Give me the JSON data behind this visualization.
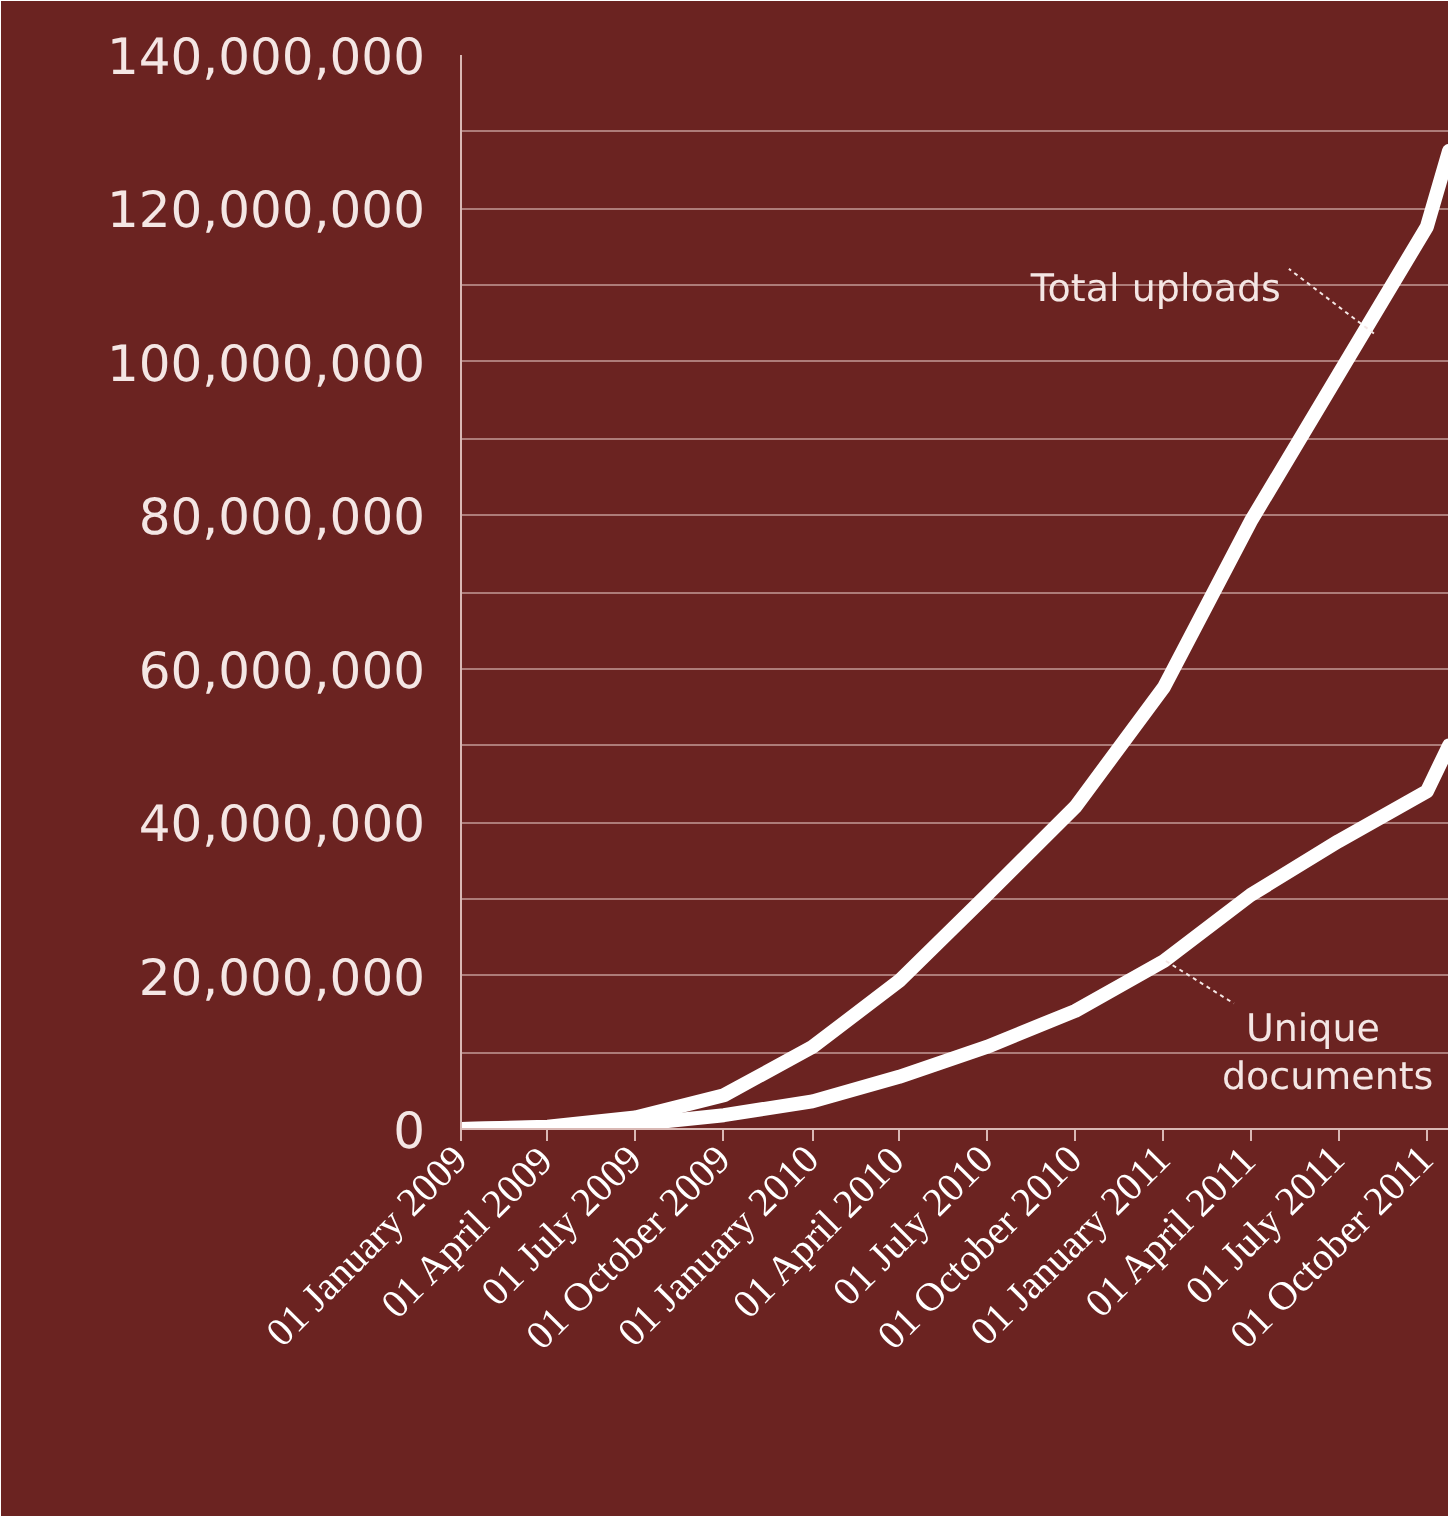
{
  "chart_data": {
    "type": "line",
    "x": [
      "2009-01-01",
      "2009-04-01",
      "2009-07-01",
      "2009-10-01",
      "2010-01-01",
      "2010-04-01",
      "2010-07-01",
      "2010-10-01",
      "2011-01-01",
      "2011-04-01",
      "2011-07-01",
      "2011-10-01",
      "2011-10-24"
    ],
    "series": [
      {
        "color": "#ffffff",
        "values": [
          0,
          300000,
          1500000,
          4400000,
          10700000,
          19300000,
          30500000,
          42000000,
          57600000,
          79200000,
          98300000,
          117600000,
          127500000
        ]
      },
      {
        "color": "#ffffff",
        "values": [
          0,
          200000,
          600000,
          1800000,
          3600000,
          6800000,
          10700000,
          15400000,
          21900000,
          30500000,
          37500000,
          44000000,
          50000000
        ]
      }
    ],
    "xlim": [
      "2009-01-01",
      "2011-10-24"
    ],
    "xticks": [
      {
        "value": "2009-01-01",
        "label": "01 January 2009"
      },
      {
        "value": "2009-04-01",
        "label": "01 April 2009"
      },
      {
        "value": "2009-07-01",
        "label": "01 July 2009"
      },
      {
        "value": "2009-10-01",
        "label": "01 October 2009"
      },
      {
        "value": "2010-01-01",
        "label": "01 January 2010"
      },
      {
        "value": "2010-04-01",
        "label": "01 April 2010"
      },
      {
        "value": "2010-07-01",
        "label": "01 July 2010"
      },
      {
        "value": "2010-10-01",
        "label": "01 October 2010"
      },
      {
        "value": "2011-01-01",
        "label": "01 January 2011"
      },
      {
        "value": "2011-04-01",
        "label": "01 April 2011"
      },
      {
        "value": "2011-07-01",
        "label": "01 July 2011"
      },
      {
        "value": "2011-10-01",
        "label": "01 October 2011"
      }
    ],
    "ylim": [
      0,
      140000000
    ],
    "yticks": [
      {
        "value": 0,
        "label": "0"
      },
      {
        "value": 10000000,
        "label": null
      },
      {
        "value": 20000000,
        "label": "20,000,000"
      },
      {
        "value": 30000000,
        "label": null
      },
      {
        "value": 40000000,
        "label": "40,000,000"
      },
      {
        "value": 50000000,
        "label": null
      },
      {
        "value": 60000000,
        "label": "60,000,000"
      },
      {
        "value": 70000000,
        "label": null
      },
      {
        "value": 80000000,
        "label": "80,000,000"
      },
      {
        "value": 90000000,
        "label": null
      },
      {
        "value": 100000000,
        "label": "100,000,000"
      },
      {
        "value": 110000000,
        "label": null
      },
      {
        "value": 120000000,
        "label": "120,000,000"
      },
      {
        "value": 130000000,
        "label": null
      },
      {
        "value": 140000000,
        "label": "140,000,000"
      }
    ],
    "grid": "y",
    "line_style": "solid",
    "marker": "none",
    "annotations": [
      {
        "text": "Total uploads",
        "x": "2011-08-07",
        "y": 103700000
      },
      {
        "text": "Unique documents",
        "x": "2011-01-03",
        "y": 21900000
      }
    ]
  }
}
